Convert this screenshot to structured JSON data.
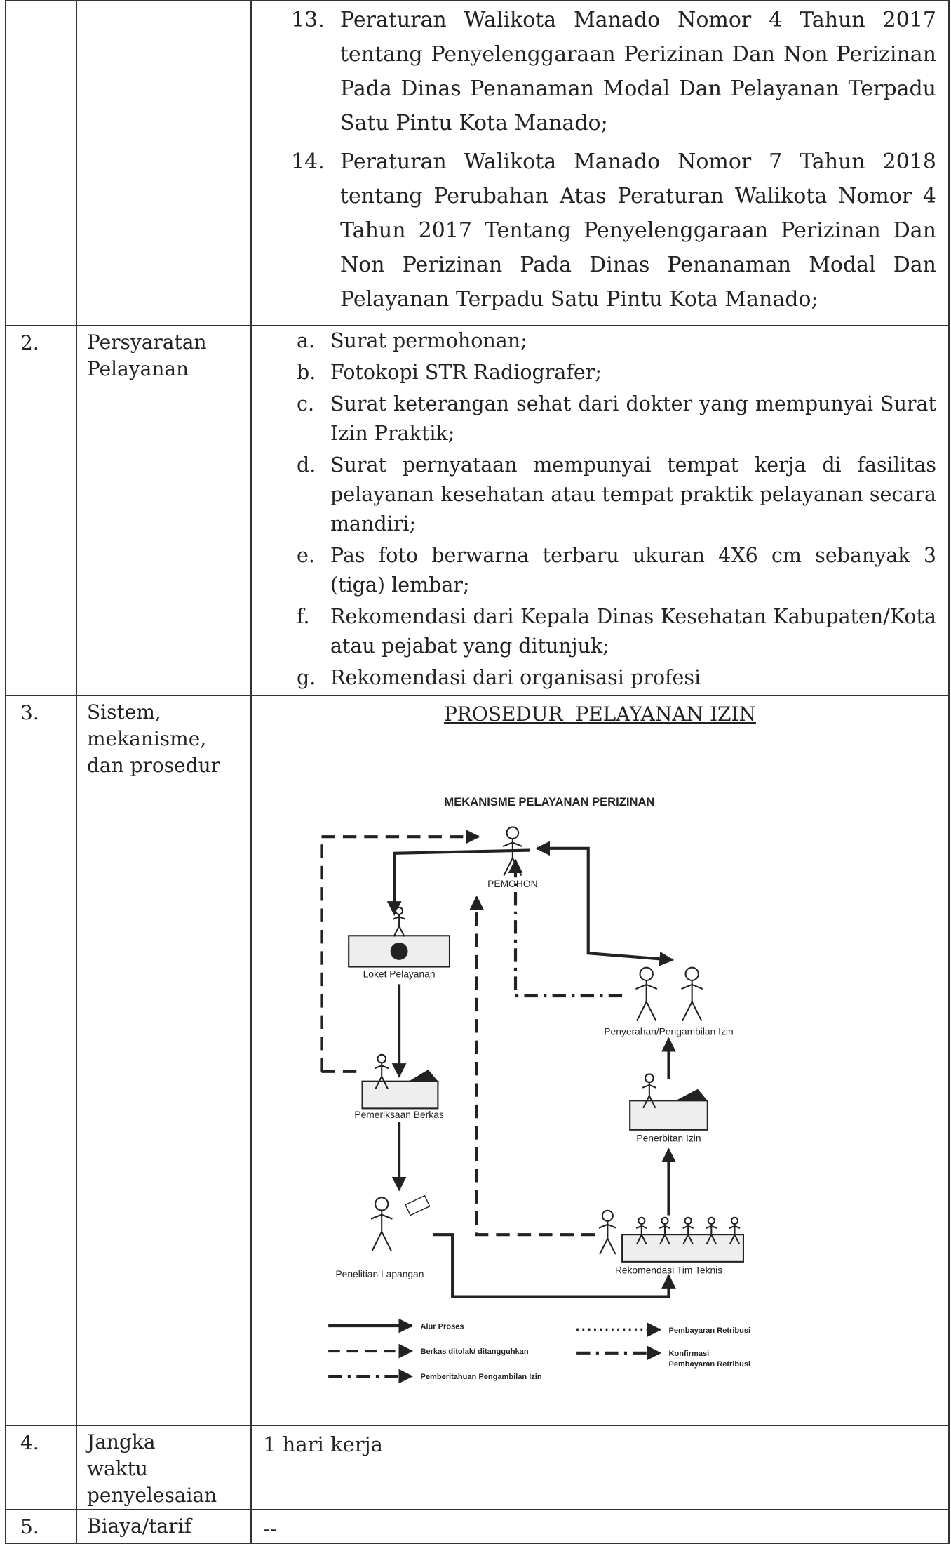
{
  "table": {
    "rows": [
      {
        "items": [
          {
            "marker": "13.",
            "text": "Peraturan Walikota Manado Nomor 4 Tahun 2017 tentang Penyelenggaraan Perizinan Dan Non Perizinan Pada Dinas Penanaman Modal Dan Pelayanan Terpadu Satu Pintu Kota Manado;"
          },
          {
            "marker": "14.",
            "text": "Peraturan Walikota Manado Nomor 7 Tahun 2018 tentang Perubahan Atas Peraturan Walikota Nomor 4 Tahun 2017 Tentang Penyelenggaraan Perizinan Dan Non Perizinan Pada Dinas Penanaman Modal Dan Pelayanan Terpadu Satu Pintu Kota Manado;"
          }
        ]
      },
      {
        "number": "2.",
        "label": [
          "Persyaratan",
          "Pelayanan"
        ],
        "items": [
          {
            "marker": "a.",
            "text": "Surat permohonan;"
          },
          {
            "marker": "b.",
            "text": "Fotokopi STR Radiografer;"
          },
          {
            "marker": "c.",
            "text": "Surat keterangan sehat dari dokter yang mempunyai Surat Izin Praktik;"
          },
          {
            "marker": "d.",
            "text": "Surat pernyataan mempunyai tempat kerja di fasilitas pelayanan kesehatan atau tempat praktik pelayanan secara mandiri;"
          },
          {
            "marker": "e.",
            "text": "Pas foto berwarna terbaru ukuran 4X6 cm sebanyak 3 (tiga) lembar;"
          },
          {
            "marker": "f.",
            "text": "Rekomendasi dari Kepala Dinas Kesehatan Kabupaten/Kota atau pejabat yang ditunjuk;"
          },
          {
            "marker": "g.",
            "text": "Rekomendasi dari organisasi profesi"
          }
        ]
      },
      {
        "number": "3.",
        "label": [
          "Sistem,",
          "mekanisme,",
          "dan prosedur"
        ],
        "heading": "PROSEDUR  PELAYANAN IZIN",
        "diagram": {
          "title": "MEKANISME PELAYANAN PERIZINAN",
          "nodes": [
            "PEMOHON",
            "Loket Pelayanan",
            "Pemeriksaan Berkas",
            "Penelitian Lapangan",
            "Rekomendasi Tim Teknis",
            "Penerbitan Izin",
            "Penyerahan/Pengambilan Izin"
          ],
          "legend": [
            {
              "label": "Alur Proses"
            },
            {
              "label": "Berkas ditolak/ ditangguhkan"
            },
            {
              "label": "Pemberitahuan Pengambilan Izin"
            },
            {
              "label": "Pembayaran Retribusi"
            },
            {
              "lines": [
                "Konfirmasi",
                "Pembayaran Retribusi"
              ]
            }
          ]
        }
      },
      {
        "number": "4.",
        "label": [
          "Jangka",
          "waktu",
          "penyelesaian"
        ],
        "content": "1 hari kerja"
      },
      {
        "number": "5.",
        "label": [
          "Biaya/tarif"
        ],
        "content": "--"
      }
    ]
  }
}
